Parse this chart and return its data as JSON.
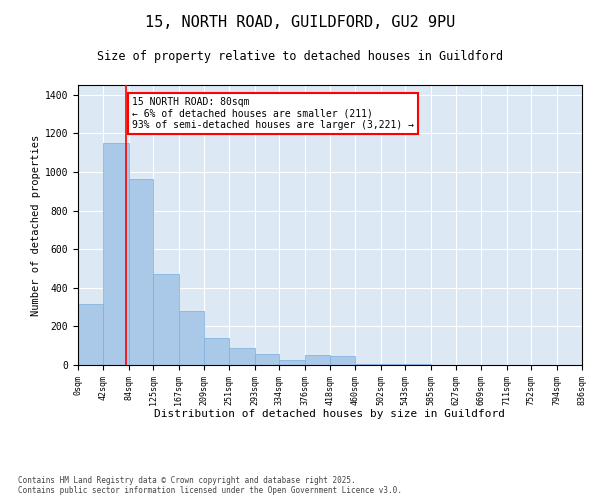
{
  "title_line1": "15, NORTH ROAD, GUILDFORD, GU2 9PU",
  "title_line2": "Size of property relative to detached houses in Guildford",
  "xlabel": "Distribution of detached houses by size in Guildford",
  "ylabel": "Number of detached properties",
  "bar_color": "#aac8e8",
  "bar_edge_color": "#7aaedc",
  "background_color": "#dce8f4",
  "annotation_text": "15 NORTH ROAD: 80sqm\n← 6% of detached houses are smaller (211)\n93% of semi-detached houses are larger (3,221) →",
  "marker_value": 80,
  "footer_line1": "Contains HM Land Registry data © Crown copyright and database right 2025.",
  "footer_line2": "Contains public sector information licensed under the Open Government Licence v3.0.",
  "bin_edges": [
    0,
    42,
    84,
    125,
    167,
    209,
    251,
    293,
    334,
    376,
    418,
    460,
    502,
    543,
    585,
    627,
    669,
    711,
    752,
    794,
    836
  ],
  "bin_counts": [
    316,
    1150,
    965,
    470,
    280,
    140,
    90,
    55,
    25,
    50,
    45,
    5,
    5,
    5,
    0,
    0,
    0,
    0,
    0,
    0
  ],
  "ylim": [
    0,
    1450
  ],
  "yticks": [
    0,
    200,
    400,
    600,
    800,
    1000,
    1200,
    1400
  ]
}
